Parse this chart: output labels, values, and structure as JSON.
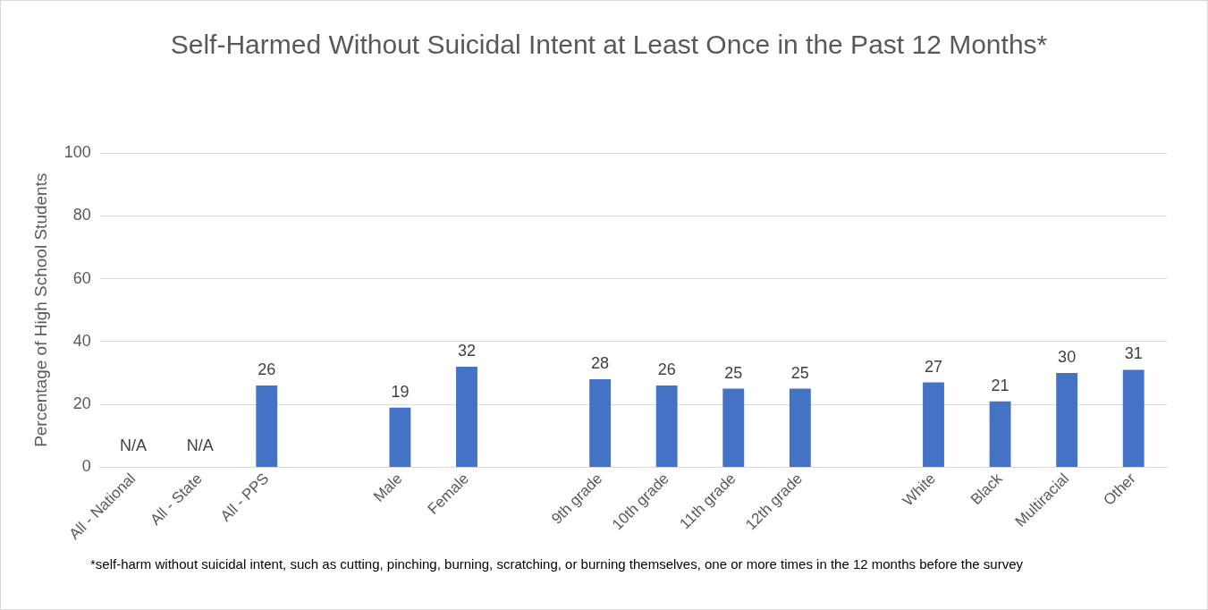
{
  "chart_data": {
    "type": "bar",
    "title": "Self-Harmed Without Suicidal Intent at Least Once in the Past 12 Months*",
    "ylabel": "Percentage of High School Students",
    "categories": [
      "All - National",
      "All - State",
      "All - PPS",
      null,
      "Male",
      "Female",
      null,
      "9th grade",
      "10th grade",
      "11th grade",
      "12th grade",
      null,
      "White",
      "Black",
      "Multiracial",
      "Other"
    ],
    "values": [
      null,
      null,
      26,
      null,
      19,
      32,
      null,
      28,
      26,
      25,
      25,
      null,
      27,
      21,
      30,
      31
    ],
    "value_labels": [
      "N/A",
      "N/A",
      "26",
      null,
      "19",
      "32",
      null,
      "28",
      "26",
      "25",
      "25",
      null,
      "27",
      "21",
      "30",
      "31"
    ],
    "color": "#4472c4",
    "ylim": [
      0,
      100
    ],
    "yticks": [
      0,
      20,
      40,
      60,
      80,
      100
    ],
    "grid": "y",
    "legend": false,
    "annotations": [
      "*self-harm without suicidal intent, such as cutting, pinching, burning, scratching, or burning themselves, one or more times in the 12 months before the survey"
    ]
  }
}
